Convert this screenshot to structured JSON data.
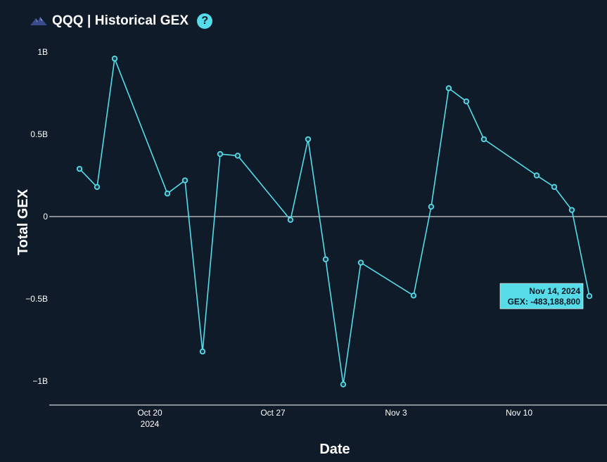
{
  "header": {
    "title": "QQQ | Historical GEX",
    "logo_icon": "mountain-logo-icon",
    "help_icon": "question-mark-icon",
    "help_symbol": "?"
  },
  "colors": {
    "background": "#101b29",
    "line": "#56dbe8",
    "zero_line": "#ffffff",
    "tooltip_bg": "#56dbe8"
  },
  "tooltip": {
    "date": "Nov 14, 2024",
    "value_label": "GEX: -483,188,800"
  },
  "chart_data": {
    "type": "line",
    "xlabel": "Date",
    "ylabel": "Total GEX",
    "ylim": [
      -1.15,
      1.0
    ],
    "y_unit": "B",
    "grid": false,
    "zero_line": true,
    "y_ticks": [
      {
        "value": 1,
        "label": "1B"
      },
      {
        "value": 0.5,
        "label": "0.5B"
      },
      {
        "value": 0,
        "label": "0"
      },
      {
        "value": -0.5,
        "label": "−0.5B"
      },
      {
        "value": -1,
        "label": "−1B"
      }
    ],
    "x_ticks": [
      {
        "date": "2024-10-20",
        "label": "Oct 20",
        "sublabel": "2024"
      },
      {
        "date": "2024-10-27",
        "label": "Oct 27",
        "sublabel": ""
      },
      {
        "date": "2024-11-03",
        "label": "Nov 3",
        "sublabel": ""
      },
      {
        "date": "2024-11-10",
        "label": "Nov 10",
        "sublabel": ""
      }
    ],
    "x_range": [
      "2024-10-15",
      "2024-11-15"
    ],
    "series": [
      {
        "points": [
          {
            "x": "2024-10-16",
            "y": 0.29
          },
          {
            "x": "2024-10-17",
            "y": 0.18
          },
          {
            "x": "2024-10-18",
            "y": 0.96
          },
          {
            "x": "2024-10-21",
            "y": 0.14
          },
          {
            "x": "2024-10-22",
            "y": 0.22
          },
          {
            "x": "2024-10-23",
            "y": -0.82
          },
          {
            "x": "2024-10-24",
            "y": 0.38
          },
          {
            "x": "2024-10-25",
            "y": 0.37
          },
          {
            "x": "2024-10-28",
            "y": -0.02
          },
          {
            "x": "2024-10-29",
            "y": 0.47
          },
          {
            "x": "2024-10-30",
            "y": -0.26
          },
          {
            "x": "2024-10-31",
            "y": -1.02
          },
          {
            "x": "2024-11-01",
            "y": -0.28
          },
          {
            "x": "2024-11-04",
            "y": -0.48
          },
          {
            "x": "2024-11-05",
            "y": 0.06
          },
          {
            "x": "2024-11-06",
            "y": 0.78
          },
          {
            "x": "2024-11-07",
            "y": 0.7
          },
          {
            "x": "2024-11-08",
            "y": 0.47
          },
          {
            "x": "2024-11-11",
            "y": 0.25
          },
          {
            "x": "2024-11-12",
            "y": 0.18
          },
          {
            "x": "2024-11-13",
            "y": 0.04
          },
          {
            "x": "2024-11-14",
            "y": -0.4831888
          }
        ]
      }
    ]
  }
}
